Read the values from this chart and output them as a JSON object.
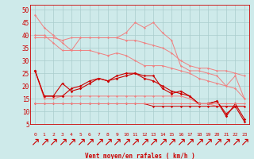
{
  "xlabel": "Vent moyen/en rafales ( km/h )",
  "background_color": "#ceeaea",
  "grid_color": "#aacccc",
  "x": [
    0,
    1,
    2,
    3,
    4,
    5,
    6,
    7,
    8,
    9,
    10,
    11,
    12,
    13,
    14,
    15,
    16,
    17,
    18,
    19,
    20,
    21,
    22,
    23
  ],
  "lines": [
    {
      "y": [
        48,
        43,
        40,
        37,
        34,
        34,
        34,
        33,
        32,
        33,
        32,
        30,
        28,
        28,
        28,
        27,
        26,
        25,
        23,
        22,
        21,
        20,
        19,
        15
      ],
      "color": "#f08080",
      "lw": 0.7,
      "ms": 1.5
    },
    {
      "y": [
        39,
        39,
        39,
        38,
        39,
        39,
        39,
        39,
        39,
        39,
        38,
        38,
        37,
        36,
        35,
        33,
        30,
        28,
        27,
        27,
        26,
        26,
        25,
        24
      ],
      "color": "#f08080",
      "lw": 0.7,
      "ms": 1.5
    },
    {
      "y": [
        40,
        40,
        37,
        34,
        34,
        39,
        39,
        39,
        39,
        39,
        41,
        45,
        43,
        45,
        41,
        38,
        28,
        26,
        26,
        25,
        24,
        20,
        24,
        15
      ],
      "color": "#f08080",
      "lw": 0.7,
      "ms": 1.5
    },
    {
      "y": [
        26,
        15,
        15,
        16,
        16,
        16,
        16,
        16,
        16,
        16,
        16,
        16,
        16,
        16,
        16,
        16,
        16,
        15,
        13,
        13,
        12,
        12,
        12,
        12
      ],
      "color": "#f08080",
      "lw": 0.7,
      "ms": 1.5
    },
    {
      "y": [
        26,
        16,
        16,
        21,
        18,
        19,
        21,
        23,
        22,
        24,
        25,
        25,
        24,
        24,
        19,
        17,
        18,
        16,
        13,
        13,
        14,
        8,
        13,
        7
      ],
      "color": "#cc0000",
      "lw": 0.8,
      "ms": 1.8
    },
    {
      "y": [
        26,
        16,
        16,
        16,
        19,
        20,
        22,
        23,
        22,
        23,
        24,
        25,
        23,
        22,
        20,
        18,
        17,
        16,
        13,
        13,
        14,
        9,
        12,
        6
      ],
      "color": "#cc0000",
      "lw": 0.8,
      "ms": 1.8
    },
    {
      "y": [
        13,
        13,
        13,
        13,
        13,
        13,
        13,
        13,
        13,
        13,
        13,
        13,
        13,
        12,
        12,
        12,
        12,
        12,
        12,
        12,
        12,
        12,
        12,
        12
      ],
      "color": "#cc0000",
      "lw": 0.7,
      "ms": 1.5
    },
    {
      "y": [
        13,
        13,
        13,
        13,
        13,
        13,
        13,
        13,
        13,
        13,
        13,
        13,
        13,
        13,
        13,
        13,
        13,
        13,
        13,
        13,
        13,
        13,
        13,
        13
      ],
      "color": "#f08080",
      "lw": 0.7,
      "ms": 1.5
    }
  ],
  "color_red": "#cc0000",
  "ylim": [
    5,
    52
  ],
  "yticks": [
    5,
    10,
    15,
    20,
    25,
    30,
    35,
    40,
    45,
    50
  ],
  "xlim": [
    -0.5,
    23.5
  ]
}
